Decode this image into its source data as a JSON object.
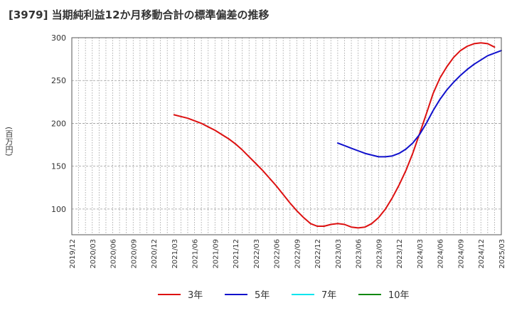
{
  "chart_data": {
    "type": "line",
    "title": "[3979]  当期純利益12か月移動合計の標準偏差の推移",
    "ylabel": "(百万円)",
    "xlabel": "",
    "ylim": [
      70,
      300
    ],
    "yticks": [
      "100",
      "150",
      "200",
      "250",
      "300"
    ],
    "xticks": [
      "2019/12",
      "2020/03",
      "2020/06",
      "2020/09",
      "2020/12",
      "2021/03",
      "2021/06",
      "2021/09",
      "2021/12",
      "2022/03",
      "2022/06",
      "2022/09",
      "2022/12",
      "2023/03",
      "2023/06",
      "2023/09",
      "2023/12",
      "2024/03",
      "2024/06",
      "2024/09",
      "2024/12",
      "2025/03"
    ],
    "grid": true,
    "legend_position": "bottom",
    "series": [
      {
        "name": "3年",
        "color": "#dd1111",
        "points": [
          [
            "2021/03",
            210
          ],
          [
            "2021/04",
            208
          ],
          [
            "2021/05",
            206
          ],
          [
            "2021/06",
            203
          ],
          [
            "2021/07",
            200
          ],
          [
            "2021/08",
            196
          ],
          [
            "2021/09",
            192
          ],
          [
            "2021/10",
            187
          ],
          [
            "2021/11",
            182
          ],
          [
            "2021/12",
            176
          ],
          [
            "2022/01",
            169
          ],
          [
            "2022/02",
            161
          ],
          [
            "2022/03",
            153
          ],
          [
            "2022/04",
            145
          ],
          [
            "2022/05",
            136
          ],
          [
            "2022/06",
            127
          ],
          [
            "2022/07",
            117
          ],
          [
            "2022/08",
            107
          ],
          [
            "2022/09",
            98
          ],
          [
            "2022/10",
            90
          ],
          [
            "2022/11",
            83
          ],
          [
            "2022/12",
            80
          ],
          [
            "2023/01",
            80
          ],
          [
            "2023/02",
            82
          ],
          [
            "2023/03",
            83
          ],
          [
            "2023/04",
            82
          ],
          [
            "2023/05",
            79
          ],
          [
            "2023/06",
            78
          ],
          [
            "2023/07",
            79
          ],
          [
            "2023/08",
            83
          ],
          [
            "2023/09",
            90
          ],
          [
            "2023/10",
            100
          ],
          [
            "2023/11",
            113
          ],
          [
            "2023/12",
            128
          ],
          [
            "2024/01",
            145
          ],
          [
            "2024/02",
            165
          ],
          [
            "2024/03",
            188
          ],
          [
            "2024/04",
            211
          ],
          [
            "2024/05",
            235
          ],
          [
            "2024/06",
            253
          ],
          [
            "2024/07",
            266
          ],
          [
            "2024/08",
            277
          ],
          [
            "2024/09",
            285
          ],
          [
            "2024/10",
            290
          ],
          [
            "2024/11",
            293
          ],
          [
            "2024/12",
            294
          ],
          [
            "2025/01",
            293
          ],
          [
            "2025/02",
            289
          ]
        ]
      },
      {
        "name": "5年",
        "color": "#1111cc",
        "points": [
          [
            "2023/03",
            177
          ],
          [
            "2023/04",
            174
          ],
          [
            "2023/05",
            171
          ],
          [
            "2023/06",
            168
          ],
          [
            "2023/07",
            165
          ],
          [
            "2023/08",
            163
          ],
          [
            "2023/09",
            161
          ],
          [
            "2023/10",
            161
          ],
          [
            "2023/11",
            162
          ],
          [
            "2023/12",
            165
          ],
          [
            "2024/01",
            170
          ],
          [
            "2024/02",
            177
          ],
          [
            "2024/03",
            187
          ],
          [
            "2024/04",
            200
          ],
          [
            "2024/05",
            215
          ],
          [
            "2024/06",
            228
          ],
          [
            "2024/07",
            239
          ],
          [
            "2024/08",
            248
          ],
          [
            "2024/09",
            256
          ],
          [
            "2024/10",
            263
          ],
          [
            "2024/11",
            269
          ],
          [
            "2024/12",
            274
          ],
          [
            "2025/01",
            279
          ],
          [
            "2025/02",
            282
          ],
          [
            "2025/03",
            285
          ]
        ]
      },
      {
        "name": "7年",
        "color": "#00e5ee",
        "points": []
      },
      {
        "name": "10年",
        "color": "#118811",
        "points": []
      }
    ]
  }
}
